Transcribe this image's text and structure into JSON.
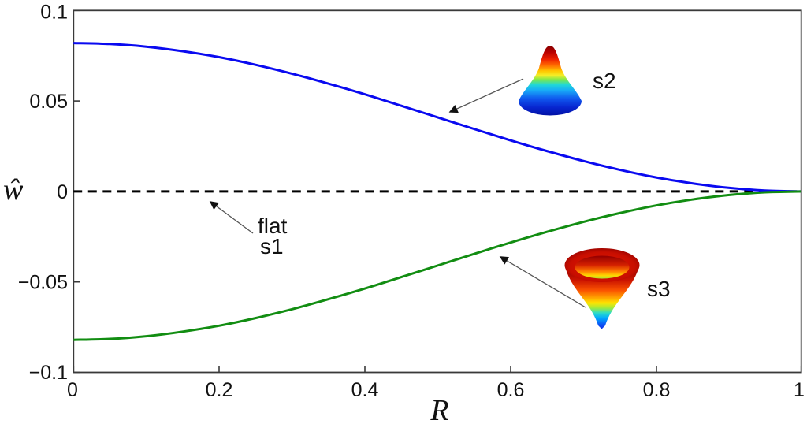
{
  "figure": {
    "ylabel": "ŵ",
    "xlabel": "R",
    "x_tick_labels": [
      "0",
      "0.2",
      "0.4",
      "0.6",
      "0.8",
      "1"
    ],
    "y_tick_labels": [
      "0.1",
      "0.05",
      "0",
      "−0.05",
      "−0.1"
    ]
  },
  "annotations": {
    "flat_line1": "flat",
    "flat_line2": "s1",
    "s2_label": "s2",
    "s3_label": "s3"
  },
  "colors": {
    "s1_dashed": "#000000",
    "s2_blue": "#0a0af0",
    "s3_green": "#128d12",
    "axis_box": "#3a3a3a",
    "arrow_line": "#555555"
  },
  "chart_data": {
    "type": "line",
    "title": "",
    "xlabel": "R",
    "ylabel": "ŵ",
    "xlim": [
      0,
      1
    ],
    "ylim": [
      -0.1,
      0.1
    ],
    "x_ticks": [
      0,
      0.2,
      0.4,
      0.6,
      0.8,
      1
    ],
    "y_ticks": [
      -0.1,
      -0.05,
      0,
      0.05,
      0.1
    ],
    "grid": false,
    "legend": "none (arrow annotations instead)",
    "x": [
      0,
      0.05,
      0.1,
      0.15,
      0.2,
      0.25,
      0.3,
      0.35,
      0.4,
      0.45,
      0.5,
      0.55,
      0.6,
      0.65,
      0.7,
      0.75,
      0.8,
      0.85,
      0.9,
      0.95,
      1.0
    ],
    "series": [
      {
        "name": "s1 flat",
        "color": "#000000",
        "line_style": "dashed",
        "inset": "none (flat plane)",
        "values": [
          0,
          0,
          0,
          0,
          0,
          0,
          0,
          0,
          0,
          0,
          0,
          0,
          0,
          0,
          0,
          0,
          0,
          0,
          0,
          0,
          0
        ]
      },
      {
        "name": "s2 bump",
        "color": "#0a0af0",
        "line_style": "solid",
        "inset": "3D gaussian bump, jet colormap",
        "values": [
          0.082,
          0.0815,
          0.08,
          0.0775,
          0.0742,
          0.07,
          0.0651,
          0.0596,
          0.0537,
          0.0474,
          0.041,
          0.0346,
          0.0283,
          0.0224,
          0.0169,
          0.012,
          0.0078,
          0.0045,
          0.002,
          0.0005,
          0.0
        ]
      },
      {
        "name": "s3 crater",
        "color": "#128d12",
        "line_style": "solid",
        "inset": "3D inverted crater/funnel, jet colormap",
        "values": [
          -0.082,
          -0.0815,
          -0.08,
          -0.0775,
          -0.0742,
          -0.07,
          -0.0651,
          -0.0596,
          -0.0537,
          -0.0474,
          -0.041,
          -0.0346,
          -0.0283,
          -0.0224,
          -0.0169,
          -0.012,
          -0.0078,
          -0.0045,
          -0.002,
          -0.0005,
          0.0
        ]
      }
    ],
    "annotations": [
      {
        "text": "flat s1",
        "points_to": "dashed zero line near R=0.19"
      },
      {
        "text": "s2",
        "points_to": "blue curve near R=0.51"
      },
      {
        "text": "s3",
        "points_to": "green curve near R=0.58"
      }
    ]
  }
}
